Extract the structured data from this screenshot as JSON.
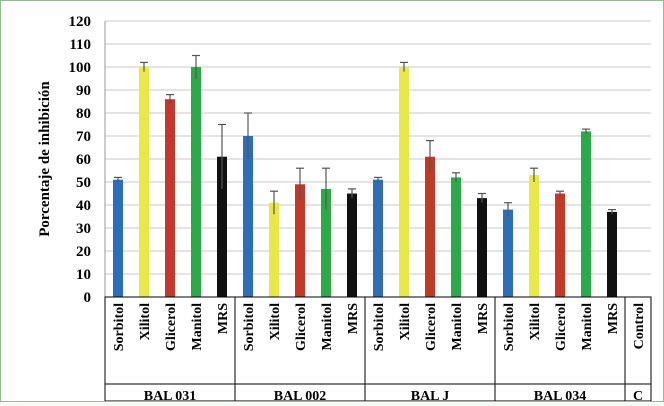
{
  "chart_data": {
    "type": "bar",
    "ylabel": "Porcentaje de inhibición",
    "ylim": [
      0,
      120
    ],
    "yticks": [
      0,
      10,
      20,
      30,
      40,
      50,
      60,
      70,
      80,
      90,
      100,
      110,
      120
    ],
    "grid": true,
    "groups": [
      {
        "label": "BAL 031",
        "bars": [
          {
            "category": "Sorbitol",
            "value": 51,
            "error": 1,
            "color": "#2f6eb5"
          },
          {
            "category": "Xilitol",
            "value": 100,
            "error": 2,
            "color": "#e8e84a"
          },
          {
            "category": "Glicerol",
            "value": 86,
            "error": 2,
            "color": "#c0392b"
          },
          {
            "category": "Manitol",
            "value": 100,
            "error": 5,
            "color": "#2ea84a"
          },
          {
            "category": "MRS",
            "value": 61,
            "error": 14,
            "color": "#111111"
          }
        ]
      },
      {
        "label": "BAL 002",
        "bars": [
          {
            "category": "Sorbitol",
            "value": 70,
            "error": 10,
            "color": "#2f6eb5"
          },
          {
            "category": "Xilitol",
            "value": 41,
            "error": 5,
            "color": "#e8e84a"
          },
          {
            "category": "Glicerol",
            "value": 49,
            "error": 7,
            "color": "#c0392b"
          },
          {
            "category": "Manitol",
            "value": 47,
            "error": 9,
            "color": "#2ea84a"
          },
          {
            "category": "MRS",
            "value": 45,
            "error": 2,
            "color": "#111111"
          }
        ]
      },
      {
        "label": "BAL J",
        "bars": [
          {
            "category": "Sorbitol",
            "value": 51,
            "error": 1,
            "color": "#2f6eb5"
          },
          {
            "category": "Xilitol",
            "value": 100,
            "error": 2,
            "color": "#e8e84a"
          },
          {
            "category": "Glicerol",
            "value": 61,
            "error": 7,
            "color": "#c0392b"
          },
          {
            "category": "Manitol",
            "value": 52,
            "error": 2,
            "color": "#2ea84a"
          },
          {
            "category": "MRS",
            "value": 43,
            "error": 2,
            "color": "#111111"
          }
        ]
      },
      {
        "label": "BAL 034",
        "bars": [
          {
            "category": "Sorbitol",
            "value": 38,
            "error": 3,
            "color": "#2f6eb5"
          },
          {
            "category": "Xilitol",
            "value": 53,
            "error": 3,
            "color": "#e8e84a"
          },
          {
            "category": "Glicerol",
            "value": 45,
            "error": 1,
            "color": "#c0392b"
          },
          {
            "category": "Manitol",
            "value": 72,
            "error": 1,
            "color": "#2ea84a"
          },
          {
            "category": "MRS",
            "value": 37,
            "error": 1,
            "color": "#111111"
          }
        ]
      },
      {
        "label": "C",
        "bars": [
          {
            "category": "Control",
            "value": 0,
            "error": 0,
            "color": "#111111"
          }
        ]
      }
    ]
  }
}
